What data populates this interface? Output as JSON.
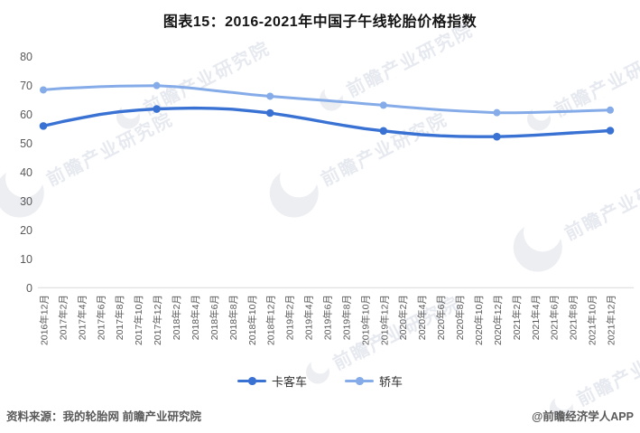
{
  "title": "图表15：2016-2021年中国子午线轮胎价格指数",
  "watermark": {
    "text": "前瞻产业研究院"
  },
  "legend": [
    {
      "label": "卡客车",
      "color": "#3a72d4"
    },
    {
      "label": "轿车",
      "color": "#85ace8"
    }
  ],
  "footer": {
    "source": "资料来源：我的轮胎网 前瞻产业研究院",
    "credit": "@前瞻经济学人APP"
  },
  "chart_data": {
    "type": "line",
    "title": "图表15：2016-2021年中国子午线轮胎价格指数",
    "categories": [
      "2016年12月",
      "2017年2月",
      "2017年4月",
      "2017年6月",
      "2017年8月",
      "2017年10月",
      "2017年12月",
      "2018年2月",
      "2018年4月",
      "2018年6月",
      "2018年8月",
      "2018年10月",
      "2018年12月",
      "2019年2月",
      "2019年4月",
      "2019年6月",
      "2019年8月",
      "2019年10月",
      "2019年12月",
      "2020年2月",
      "2020年4月",
      "2020年6月",
      "2020年8月",
      "2020年10月",
      "2020年12月",
      "2021年2月",
      "2021年4月",
      "2021年6月",
      "2021年8月",
      "2021年10月",
      "2021年12月"
    ],
    "series": [
      {
        "name": "卡客车",
        "color": "#3a72d4",
        "values": [
          56.0,
          57.5,
          58.8,
          60.0,
          60.9,
          61.5,
          61.9,
          62.1,
          62.2,
          62.1,
          61.8,
          61.2,
          60.5,
          59.5,
          58.4,
          57.2,
          56.1,
          55.1,
          54.3,
          53.6,
          53.0,
          52.6,
          52.4,
          52.3,
          52.3,
          52.5,
          52.8,
          53.2,
          53.6,
          54.0,
          54.4
        ]
      },
      {
        "name": "轿车",
        "color": "#85ace8",
        "values": [
          68.5,
          69.0,
          69.3,
          69.6,
          69.8,
          69.9,
          70.0,
          69.6,
          69.0,
          68.3,
          67.6,
          66.9,
          66.3,
          65.8,
          65.3,
          64.8,
          64.3,
          63.7,
          63.2,
          62.6,
          62.1,
          61.6,
          61.2,
          60.9,
          60.6,
          60.6,
          60.7,
          60.9,
          61.1,
          61.3,
          61.5
        ]
      }
    ],
    "ylim": [
      0,
      80
    ],
    "ytick_step": 10,
    "grid": false,
    "legend_position": "bottom",
    "marker_every": 6,
    "axis_color": "#d9d9d9",
    "tick_label_color": "#595959"
  }
}
